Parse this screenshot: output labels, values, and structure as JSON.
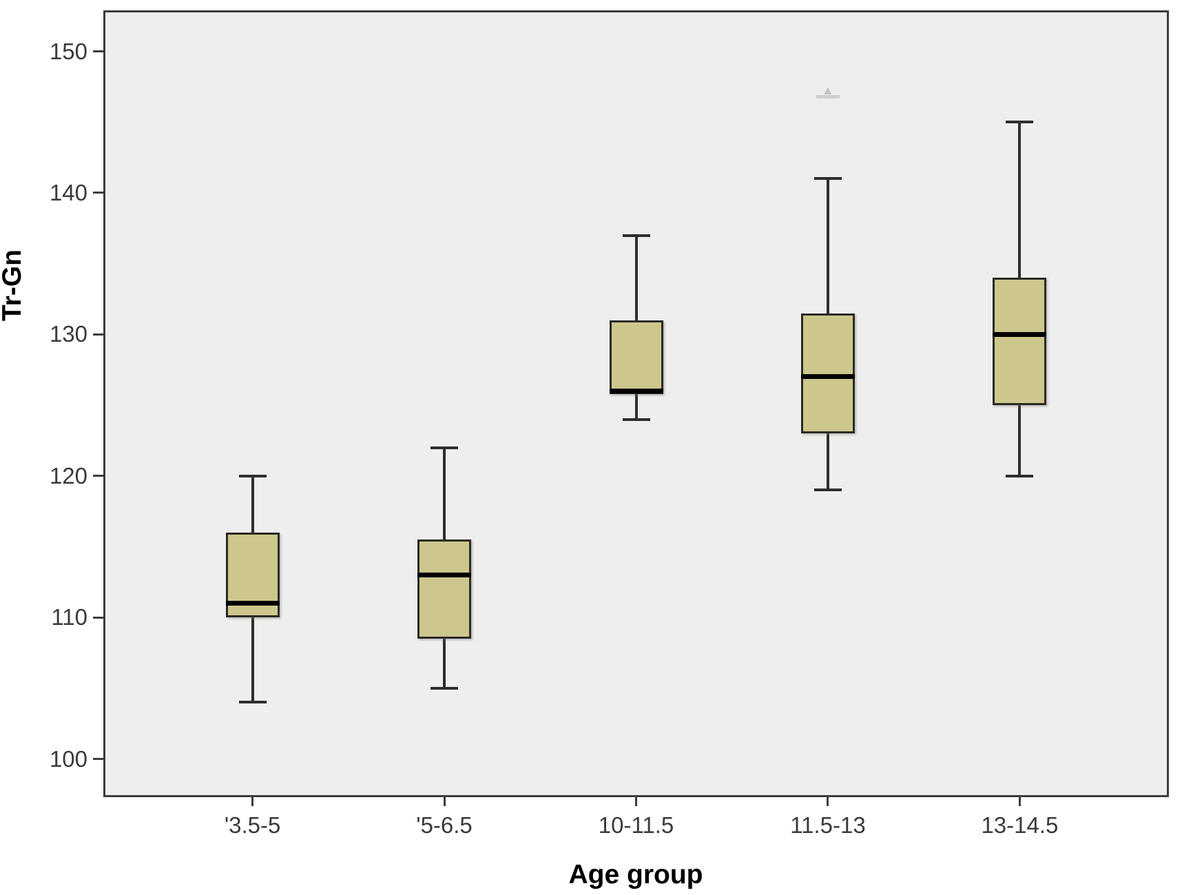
{
  "figure": {
    "background": "#ffffff",
    "plot_background": "#eeeeee",
    "frame_color": "#3d3d3d"
  },
  "chart_data": {
    "type": "boxplot",
    "title": "",
    "xlabel": "Age group",
    "ylabel": "Tr-Gn",
    "categories": [
      "'3.5-5",
      "'5-6.5",
      "10-11.5",
      "11.5-13",
      "13-14.5"
    ],
    "y_ticks": [
      "100",
      "110",
      "120",
      "130",
      "140",
      "150"
    ],
    "y_tick_values": [
      100,
      110,
      120,
      130,
      140,
      150
    ],
    "ylim": [
      97.3,
      152.9
    ],
    "grid": false,
    "legend": "none",
    "series": [
      {
        "category": "'3.5-5",
        "whisker_low": 104,
        "q1": 110,
        "median": 111,
        "q3": 116,
        "whisker_high": 120
      },
      {
        "category": "'5-6.5",
        "whisker_low": 105,
        "q1": 108.5,
        "median": 113,
        "q3": 115.5,
        "whisker_high": 122
      },
      {
        "category": "10-11.5",
        "whisker_low": 124,
        "q1": 125.8,
        "median": 126,
        "q3": 131,
        "whisker_high": 137
      },
      {
        "category": "11.5-13",
        "whisker_low": 119,
        "q1": 123,
        "median": 127,
        "q3": 131.5,
        "whisker_high": 141,
        "faint_marker": 147
      },
      {
        "category": "13-14.5",
        "whisker_low": 120,
        "q1": 125,
        "median": 130,
        "q3": 134,
        "whisker_high": 145
      }
    ],
    "box_fill": "#cdc78e",
    "box_border": "#2b2b23",
    "median_color": "#000000",
    "whisker_color": "#2e2e2e",
    "outlier_marker_glyph": "▲"
  }
}
